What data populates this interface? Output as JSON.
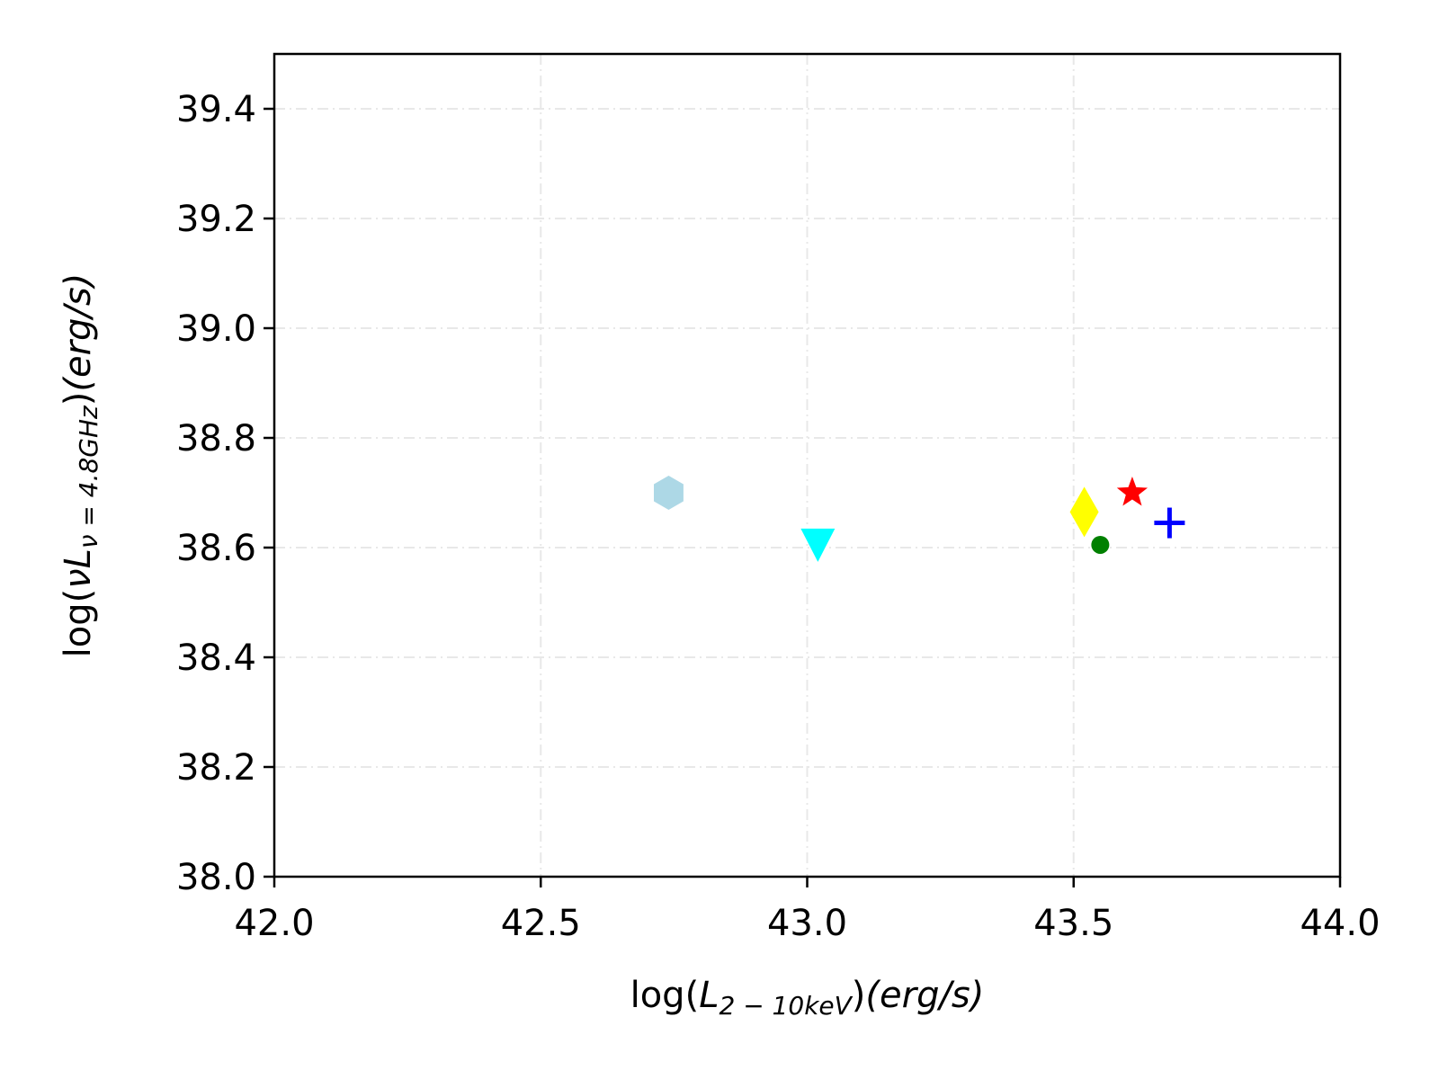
{
  "chart_data": {
    "type": "scatter",
    "title": "",
    "xlabel": {
      "prefix": "log(",
      "main": "L",
      "sub": "2 − 10keV",
      "close": ")",
      "unit": "(erg/s)"
    },
    "ylabel": {
      "prefix": "log(",
      "main": "νL",
      "sub": "ν = 4.8GHz",
      "close": ")",
      "unit": "(erg/s)"
    },
    "xlim": [
      42.0,
      44.0
    ],
    "ylim": [
      38.0,
      39.5
    ],
    "x_ticks": [
      "42.0",
      "42.5",
      "43.0",
      "43.5",
      "44.0"
    ],
    "y_ticks": [
      "38.0",
      "38.2",
      "38.4",
      "38.6",
      "38.8",
      "39.0",
      "39.2",
      "39.4"
    ],
    "grid": true,
    "grid_style": "dash-dot",
    "legend": "none",
    "series": [
      {
        "x": 42.74,
        "y": 38.7,
        "marker": "hexagon",
        "color": "#add8e6"
      },
      {
        "x": 43.02,
        "y": 38.61,
        "marker": "triangle-down",
        "color": "#00ffff"
      },
      {
        "x": 43.52,
        "y": 38.665,
        "marker": "diamond",
        "color": "#ffff00"
      },
      {
        "x": 43.55,
        "y": 38.605,
        "marker": "circle",
        "color": "#008000"
      },
      {
        "x": 43.61,
        "y": 38.7,
        "marker": "star",
        "color": "#ff0000"
      },
      {
        "x": 43.68,
        "y": 38.645,
        "marker": "plus",
        "color": "#0000ff"
      }
    ]
  }
}
